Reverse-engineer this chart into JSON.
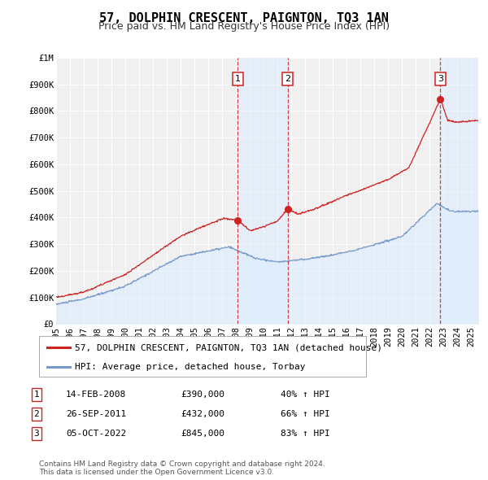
{
  "title": "57, DOLPHIN CRESCENT, PAIGNTON, TQ3 1AN",
  "subtitle": "Price paid vs. HM Land Registry's House Price Index (HPI)",
  "ylim": [
    0,
    1000000
  ],
  "xlim_start": 1995.0,
  "xlim_end": 2025.5,
  "yticks": [
    0,
    100000,
    200000,
    300000,
    400000,
    500000,
    600000,
    700000,
    800000,
    900000,
    1000000
  ],
  "ytick_labels": [
    "£0",
    "£100K",
    "£200K",
    "£300K",
    "£400K",
    "£500K",
    "£600K",
    "£700K",
    "£800K",
    "£900K",
    "£1M"
  ],
  "xticks": [
    1995,
    1996,
    1997,
    1998,
    1999,
    2000,
    2001,
    2002,
    2003,
    2004,
    2005,
    2006,
    2007,
    2008,
    2009,
    2010,
    2011,
    2012,
    2013,
    2014,
    2015,
    2016,
    2017,
    2018,
    2019,
    2020,
    2021,
    2022,
    2023,
    2024,
    2025
  ],
  "red_line_color": "#cc2222",
  "blue_line_color": "#7799cc",
  "blue_fill_color": "#ddeeff",
  "shade_color": "#ddeeff",
  "vline_color": "#cc2222",
  "marker_color": "#cc2222",
  "background_color": "#ffffff",
  "plot_bg_color": "#f0f0f0",
  "grid_color": "#ffffff",
  "legend_label_red": "57, DOLPHIN CRESCENT, PAIGNTON, TQ3 1AN (detached house)",
  "legend_label_blue": "HPI: Average price, detached house, Torbay",
  "transactions": [
    {
      "num": 1,
      "date": "14-FEB-2008",
      "year": 2008.12,
      "price": 390000,
      "hpi_pct": "40%",
      "arrow": "↑"
    },
    {
      "num": 2,
      "date": "26-SEP-2011",
      "year": 2011.73,
      "price": 432000,
      "hpi_pct": "66%",
      "arrow": "↑"
    },
    {
      "num": 3,
      "date": "05-OCT-2022",
      "year": 2022.76,
      "price": 845000,
      "hpi_pct": "83%",
      "arrow": "↑"
    }
  ],
  "footer_text": "Contains HM Land Registry data © Crown copyright and database right 2024.\nThis data is licensed under the Open Government Licence v3.0.",
  "title_fontsize": 11,
  "subtitle_fontsize": 9,
  "tick_fontsize": 7.5,
  "legend_fontsize": 8,
  "footer_fontsize": 6.5,
  "table_fontsize": 8
}
